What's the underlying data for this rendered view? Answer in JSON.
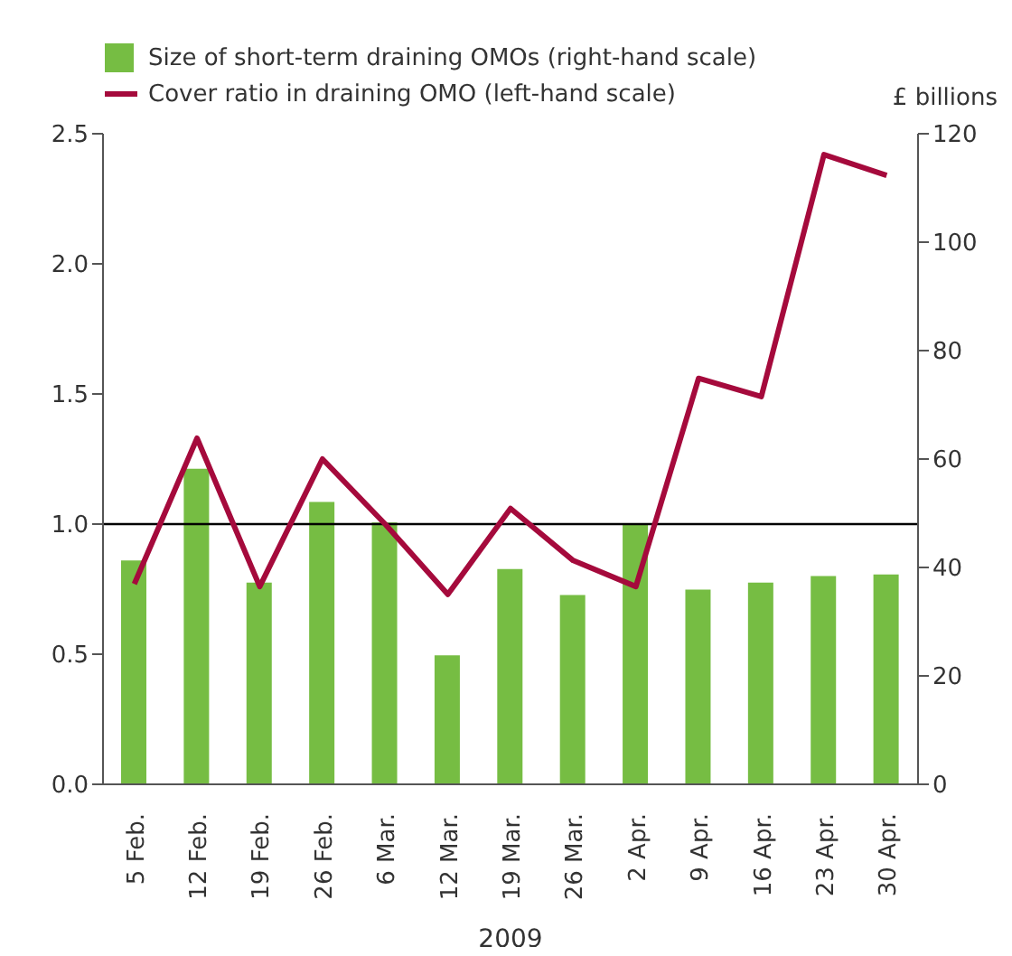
{
  "chart_data": {
    "type": "bar",
    "categories": [
      "5 Feb.",
      "12 Feb.",
      "19 Feb.",
      "26 Feb.",
      "6 Mar.",
      "12 Mar.",
      "19 Mar.",
      "26 Mar.",
      "2 Apr.",
      "9 Apr.",
      "16 Apr.",
      "23 Apr.",
      "30 Apr."
    ],
    "series": [
      {
        "name": "Size of short-term draining OMOs (right-hand scale)",
        "axis": "y2",
        "color": "#76bd43",
        "values": [
          41.3,
          58.2,
          37.2,
          52.1,
          48.3,
          23.8,
          39.7,
          34.9,
          48,
          35.9,
          37.2,
          38.4,
          38.7
        ]
      },
      {
        "name": "Cover ratio in draining OMO (left-hand scale)",
        "type": "line",
        "color": "#a50a3c",
        "values": [
          0.77,
          1.33,
          0.76,
          1.25,
          1.0,
          0.73,
          1.06,
          0.86,
          0.76,
          1.56,
          1.49,
          2.42,
          2.34
        ]
      }
    ],
    "xlabel": "2009",
    "y2label": "£ billions",
    "ylim": [
      0,
      2.5
    ],
    "yticks": [
      {
        "value": 0,
        "label": "0.0"
      },
      0.5,
      {
        "value": 1,
        "label": "1.0"
      },
      1.5,
      {
        "value": 2,
        "label": "2.0"
      },
      2.5
    ],
    "y2lim": [
      0,
      120
    ],
    "y2ticks": [
      0,
      20,
      40,
      60,
      80,
      100,
      120
    ],
    "ref_lines": [
      {
        "axis": "y",
        "value": 1,
        "color": "#000000"
      }
    ],
    "legend": "top left",
    "grid": false,
    "marker": "none",
    "line_style": "solid"
  }
}
